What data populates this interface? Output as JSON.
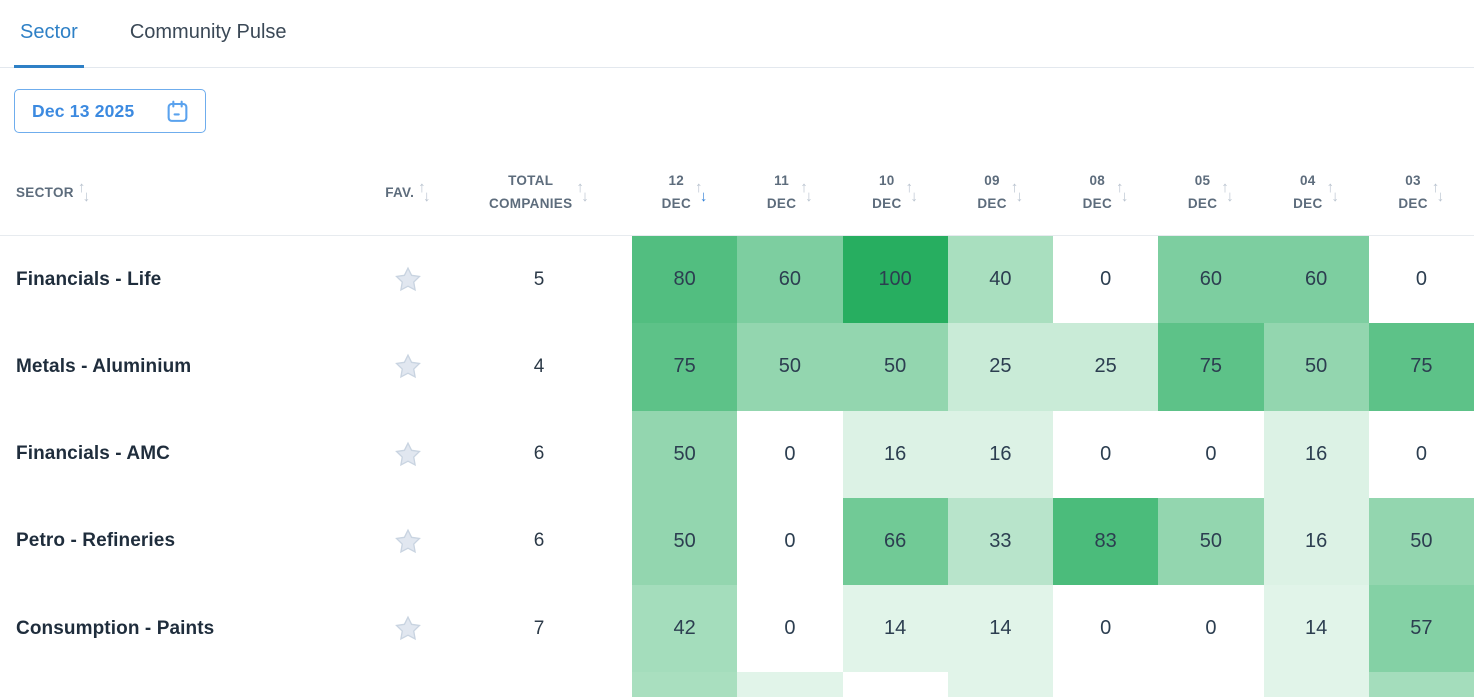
{
  "tabs": [
    {
      "label": "Sector",
      "active": true
    },
    {
      "label": "Community Pulse",
      "active": false
    }
  ],
  "date_picker": {
    "value": "Dec 13 2025"
  },
  "table": {
    "columns": {
      "sector": "SECTOR",
      "fav": "FAV.",
      "total_line1": "TOTAL",
      "total_line2": "COMPANIES",
      "dates": [
        {
          "day": "12",
          "month": "DEC",
          "sorted": "desc"
        },
        {
          "day": "11",
          "month": "DEC",
          "sorted": ""
        },
        {
          "day": "10",
          "month": "DEC",
          "sorted": ""
        },
        {
          "day": "09",
          "month": "DEC",
          "sorted": ""
        },
        {
          "day": "08",
          "month": "DEC",
          "sorted": ""
        },
        {
          "day": "05",
          "month": "DEC",
          "sorted": ""
        },
        {
          "day": "04",
          "month": "DEC",
          "sorted": ""
        },
        {
          "day": "03",
          "month": "DEC",
          "sorted": ""
        }
      ]
    },
    "rows": [
      {
        "sector": "Financials - Life",
        "total": "5",
        "values": [
          80,
          60,
          100,
          40,
          0,
          60,
          60,
          0
        ]
      },
      {
        "sector": "Metals - Aluminium",
        "total": "4",
        "values": [
          75,
          50,
          50,
          25,
          25,
          75,
          50,
          75
        ]
      },
      {
        "sector": "Financials - AMC",
        "total": "6",
        "values": [
          50,
          0,
          16,
          16,
          0,
          0,
          16,
          0
        ]
      },
      {
        "sector": "Petro - Refineries",
        "total": "6",
        "values": [
          50,
          0,
          66,
          33,
          83,
          50,
          16,
          50
        ]
      },
      {
        "sector": "Consumption - Paints",
        "total": "7",
        "values": [
          42,
          0,
          14,
          14,
          0,
          0,
          14,
          57
        ]
      }
    ],
    "partial_row_intensities": [
      40,
      14,
      0,
      14,
      0,
      0,
      14,
      42
    ]
  },
  "chart_data": {
    "type": "heatmap",
    "categories": [
      "12 DEC",
      "11 DEC",
      "10 DEC",
      "09 DEC",
      "08 DEC",
      "05 DEC",
      "04 DEC",
      "03 DEC"
    ],
    "series": [
      {
        "name": "Financials - Life",
        "values": [
          80,
          60,
          100,
          40,
          0,
          60,
          60,
          0
        ]
      },
      {
        "name": "Metals - Aluminium",
        "values": [
          75,
          50,
          50,
          25,
          25,
          75,
          50,
          75
        ]
      },
      {
        "name": "Financials - AMC",
        "values": [
          50,
          0,
          16,
          16,
          0,
          0,
          16,
          0
        ]
      },
      {
        "name": "Petro - Refineries",
        "values": [
          50,
          0,
          66,
          33,
          83,
          50,
          16,
          50
        ]
      },
      {
        "name": "Consumption - Paints",
        "values": [
          42,
          0,
          14,
          14,
          0,
          0,
          14,
          57
        ]
      }
    ],
    "value_range": [
      0,
      100
    ]
  },
  "colors": {
    "heat_base": "#27ae60",
    "heat_base_rgb": "39,174,96",
    "tab_active": "#2e80c6",
    "tab_inactive": "#3a4856",
    "date_accent": "#3c8ae0",
    "date_border": "#6faded",
    "calendar_icon": "#5aa2ee",
    "sort_active": "#2f7fd6",
    "sort_idle": "#b9c3cf",
    "header_text": "#5d6c7c",
    "cell_text": "#2c3e50",
    "star_fill": "#e1e7f0",
    "star_stroke": "#c9d4e1",
    "divider": "#e7ebef"
  }
}
